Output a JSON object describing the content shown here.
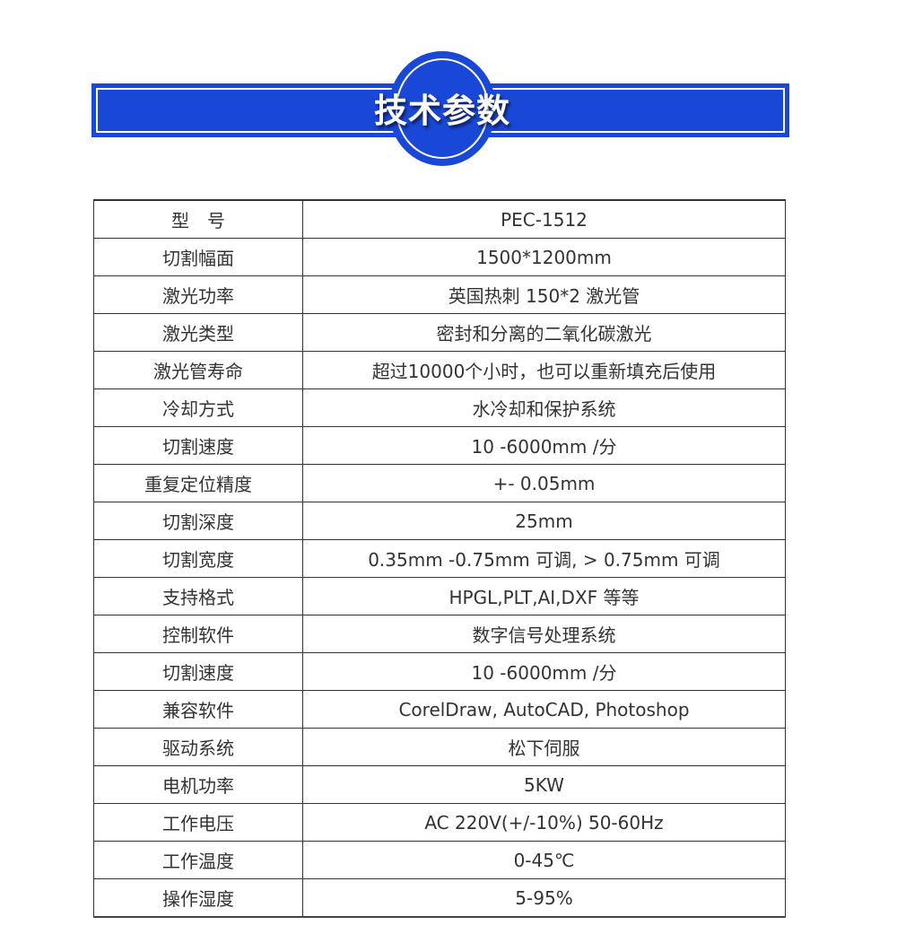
{
  "header": {
    "title": "技术参数",
    "accent": "#1947d8"
  },
  "rows": [
    [
      "型　号",
      "PEC-1512"
    ],
    [
      "切割幅面",
      "1500*1200mm"
    ],
    [
      "激光功率",
      "英国热刺 150*2 激光管"
    ],
    [
      "激光类型",
      "密封和分离的二氧化碳激光"
    ],
    [
      "激光管寿命",
      "超过10000个小时，也可以重新填充后使用"
    ],
    [
      "冷却方式",
      "水冷却和保护系统"
    ],
    [
      "切割速度",
      "10 -6000mm /分"
    ],
    [
      "重复定位精度",
      "+- 0.05mm"
    ],
    [
      "切割深度",
      "25mm"
    ],
    [
      "切割宽度",
      "0.35mm -0.75mm 可调, > 0.75mm 可调"
    ],
    [
      "支持格式",
      "HPGL,PLT,AI,DXF 等等"
    ],
    [
      "控制软件",
      "数字信号处理系统"
    ],
    [
      "切割速度",
      "10 -6000mm /分"
    ],
    [
      "兼容软件",
      "CorelDraw, AutoCAD, Photoshop"
    ],
    [
      "驱动系统",
      "松下伺服"
    ],
    [
      "电机功率",
      "5KW"
    ],
    [
      "工作电压",
      "AC 220V(+/-10%) 50-60Hz"
    ],
    [
      "工作温度",
      "0-45℃"
    ],
    [
      "操作湿度",
      "5-95%"
    ]
  ]
}
